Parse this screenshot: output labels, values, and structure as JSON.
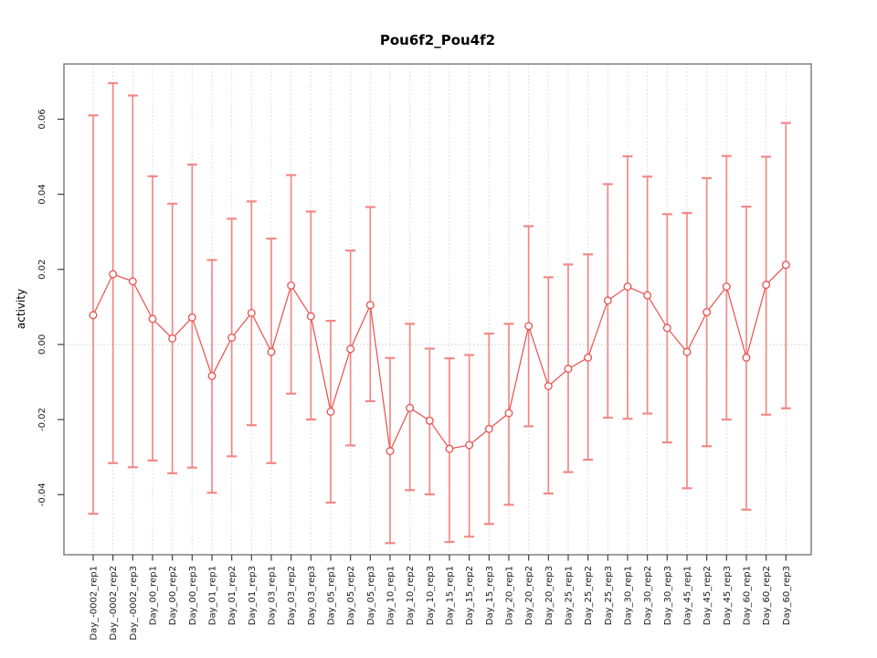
{
  "chart_data": {
    "type": "line",
    "title": "Pou6f2_Pou4f2",
    "xlabel": "",
    "ylabel": "activity",
    "legend": "none",
    "marker": "open-circle",
    "grid": "vertical-dotted-per-category",
    "zero_line": true,
    "ylim": [
      -0.056,
      0.0747
    ],
    "yticks": [
      -0.04,
      -0.02,
      0,
      0.02,
      0.04,
      0.06
    ],
    "ytick_labels": [
      "-0.04",
      "-0.02",
      "0.00",
      "0.02",
      "0.04",
      "0.06"
    ],
    "categories": [
      "Day_-0002_rep1",
      "Day_-0002_rep2",
      "Day_-0002_rep3",
      "Day_00_rep1",
      "Day_00_rep2",
      "Day_00_rep3",
      "Day_01_rep1",
      "Day_01_rep2",
      "Day_01_rep3",
      "Day_03_rep1",
      "Day_03_rep2",
      "Day_03_rep3",
      "Day_05_rep1",
      "Day_05_rep2",
      "Day_05_rep3",
      "Day_10_rep1",
      "Day_10_rep2",
      "Day_10_rep3",
      "Day_15_rep1",
      "Day_15_rep2",
      "Day_15_rep3",
      "Day_20_rep1",
      "Day_20_rep2",
      "Day_20_rep3",
      "Day_25_rep1",
      "Day_25_rep2",
      "Day_25_rep3",
      "Day_30_rep1",
      "Day_30_rep2",
      "Day_30_rep3",
      "Day_45_rep1",
      "Day_45_rep2",
      "Day_45_rep3",
      "Day_60_rep1",
      "Day_60_rep2",
      "Day_60_rep3"
    ],
    "series": [
      {
        "name": "activity",
        "values": [
          0.0078,
          0.0187,
          0.0168,
          0.0068,
          0.0016,
          0.0072,
          -0.0084,
          0.0018,
          0.0084,
          -0.002,
          0.0157,
          0.0075,
          -0.0179,
          -0.0012,
          0.0105,
          -0.0284,
          -0.0169,
          -0.0203,
          -0.0278,
          -0.0268,
          -0.0225,
          -0.0183,
          0.0049,
          -0.0111,
          -0.0065,
          -0.0035,
          0.0117,
          0.0154,
          0.0131,
          0.0044,
          -0.002,
          0.0086,
          0.0154,
          -0.0035,
          0.0159,
          0.0212
        ],
        "error_high": [
          0.061,
          0.0696,
          0.0663,
          0.0448,
          0.0375,
          0.0479,
          0.0225,
          0.0335,
          0.0381,
          0.0282,
          0.0451,
          0.0354,
          0.0063,
          0.025,
          0.0366,
          -0.0036,
          0.0055,
          -0.0011,
          -0.0037,
          -0.0028,
          0.0029,
          0.0055,
          0.0315,
          0.0179,
          0.0213,
          0.024,
          0.0427,
          0.0501,
          0.0447,
          0.0347,
          0.035,
          0.0443,
          0.0502,
          0.0367,
          0.05,
          0.059
        ],
        "error_low": [
          -0.0451,
          -0.0316,
          -0.0327,
          -0.0309,
          -0.0343,
          -0.0328,
          -0.0395,
          -0.0298,
          -0.0215,
          -0.0316,
          -0.0131,
          -0.02,
          -0.0421,
          -0.0269,
          -0.0151,
          -0.0529,
          -0.0388,
          -0.0399,
          -0.0526,
          -0.0512,
          -0.0478,
          -0.0427,
          -0.0218,
          -0.0397,
          -0.034,
          -0.0307,
          -0.0195,
          -0.0198,
          -0.0184,
          -0.0261,
          -0.0383,
          -0.0271,
          -0.02,
          -0.044,
          -0.0187,
          -0.017
        ]
      }
    ],
    "colors": {
      "series": "#e8504d",
      "error_bar": "#f28380",
      "marker_fill": "#ffffff",
      "grid": "#d8d8d8",
      "zero_line": "#c8c8c8",
      "frame": "#808080",
      "tick": "#404040",
      "text": "#000000",
      "background": "#ffffff"
    }
  }
}
